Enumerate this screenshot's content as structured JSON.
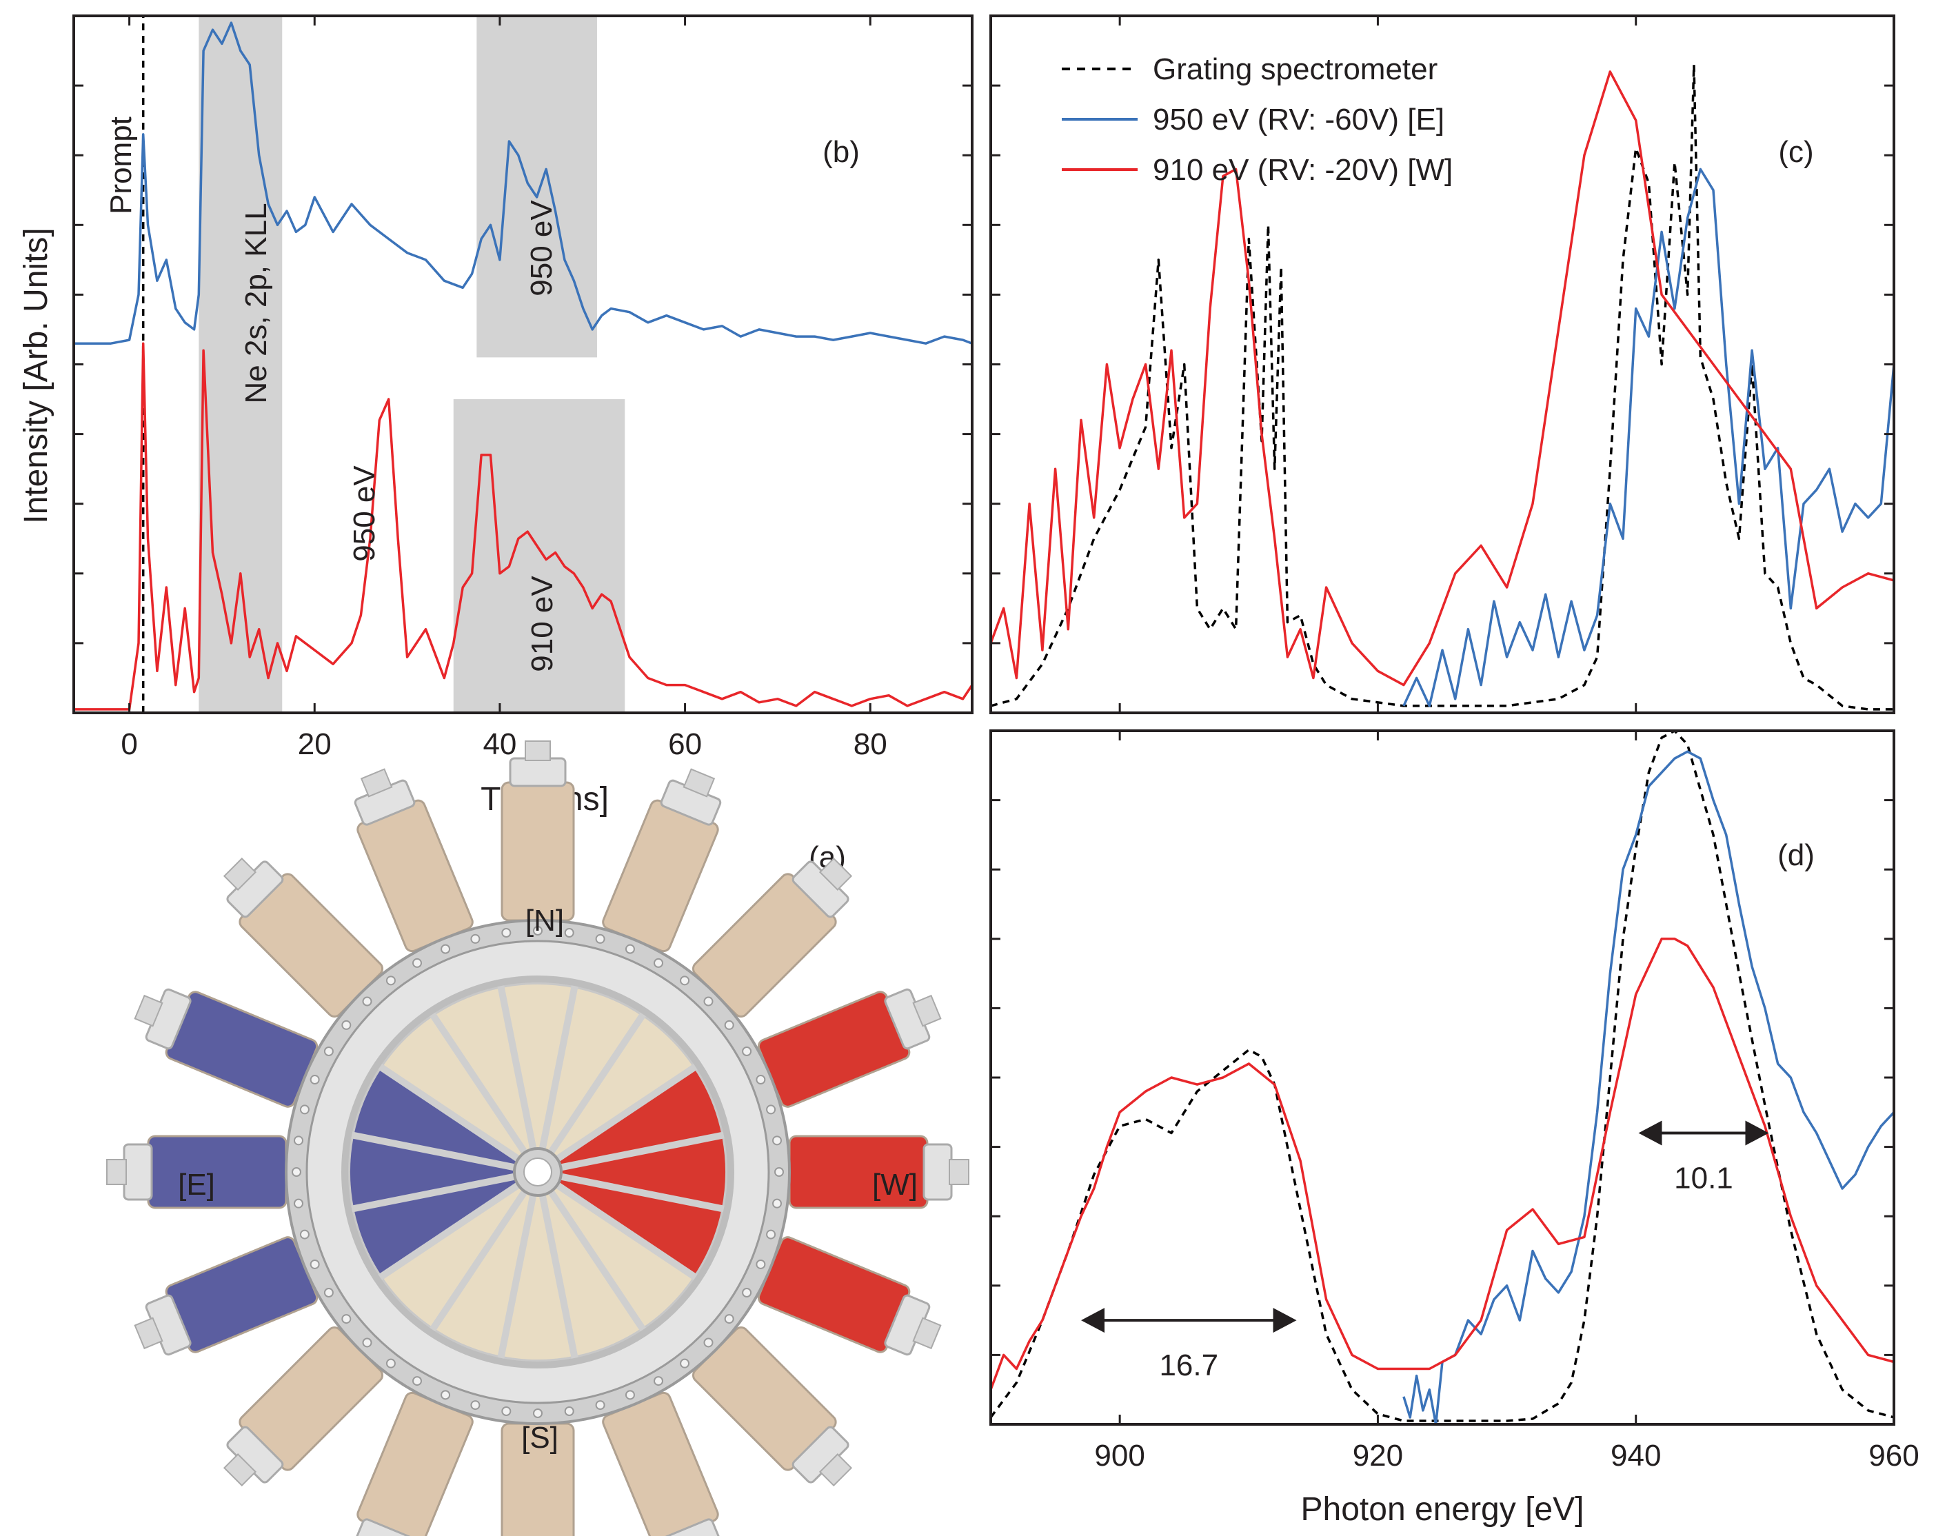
{
  "figure": {
    "ylabel_left": "Intensity [Arb. Units]"
  },
  "chart_data": [
    {
      "id": "b",
      "type": "line",
      "panel_label": "(b)",
      "xlabel": "TOF [ns]",
      "ylabel": "Intensity [Arb. Units]",
      "xlim": [
        -6,
        91
      ],
      "ylim": [
        0,
        10
      ],
      "xticks": [
        0,
        20,
        40,
        60,
        80
      ],
      "tick_labels": [
        "0",
        "20",
        "40",
        "60",
        "80"
      ],
      "shaded_regions": [
        {
          "x0": 7.5,
          "x1": 16.5,
          "y0": 0,
          "y1": 10
        },
        {
          "x0": 37.5,
          "x1": 50.5,
          "y0": 5.1,
          "y1": 10
        },
        {
          "x0": 35,
          "x1": 53.5,
          "y0": 0,
          "y1": 4.5
        }
      ],
      "series": [
        {
          "name": "Prompt",
          "color": "#000000",
          "dash": true,
          "x": [
            1.5,
            1.5
          ],
          "y": [
            0,
            10
          ]
        },
        {
          "name": "950 eV",
          "color": "#3b73b9",
          "x": [
            -6,
            -4,
            -2,
            0,
            1,
            1.5,
            2,
            3,
            4,
            5,
            6,
            7,
            7.5,
            8,
            9,
            10,
            11,
            12,
            13,
            14,
            15,
            16,
            17,
            18,
            19,
            20,
            22,
            24,
            26,
            28,
            30,
            32,
            34,
            36,
            37,
            38,
            39,
            40,
            41,
            42,
            43,
            44,
            45,
            46,
            47,
            48,
            49,
            50,
            51,
            52,
            54,
            56,
            58,
            60,
            62,
            64,
            66,
            68,
            70,
            72,
            74,
            76,
            78,
            80,
            82,
            84,
            86,
            88,
            90,
            91
          ],
          "y": [
            5.3,
            5.3,
            5.3,
            5.35,
            6.0,
            8.3,
            7.0,
            6.2,
            6.5,
            5.8,
            5.6,
            5.5,
            6.0,
            9.5,
            9.8,
            9.6,
            9.9,
            9.5,
            9.3,
            8.0,
            7.3,
            7.0,
            7.2,
            6.9,
            7.0,
            7.4,
            6.9,
            7.3,
            7.0,
            6.8,
            6.6,
            6.5,
            6.2,
            6.1,
            6.3,
            6.8,
            7.0,
            6.5,
            8.2,
            8.0,
            7.6,
            7.4,
            7.8,
            7.2,
            6.5,
            6.2,
            5.8,
            5.5,
            5.7,
            5.8,
            5.75,
            5.6,
            5.7,
            5.6,
            5.5,
            5.55,
            5.4,
            5.5,
            5.45,
            5.4,
            5.4,
            5.35,
            5.4,
            5.45,
            5.4,
            5.35,
            5.3,
            5.4,
            5.35,
            5.3
          ]
        },
        {
          "name": "910 eV",
          "color": "#e8262a",
          "x": [
            -6,
            -4,
            -2,
            0,
            1,
            1.5,
            2,
            3,
            4,
            5,
            6,
            7,
            7.5,
            8,
            9,
            10,
            11,
            12,
            13,
            14,
            15,
            16,
            17,
            18,
            20,
            22,
            24,
            25,
            26,
            27,
            28,
            29,
            30,
            32,
            34,
            35,
            36,
            37,
            38,
            39,
            40,
            41,
            42,
            43,
            44,
            45,
            46,
            47,
            48,
            49,
            50,
            51,
            52,
            53,
            54,
            56,
            58,
            60,
            62,
            64,
            66,
            68,
            70,
            72,
            74,
            76,
            78,
            80,
            82,
            84,
            86,
            88,
            90,
            91
          ],
          "y": [
            0.05,
            0.05,
            0.05,
            0.05,
            1.0,
            5.3,
            2.5,
            0.6,
            1.8,
            0.4,
            1.5,
            0.3,
            0.5,
            5.2,
            2.3,
            1.7,
            1.0,
            2.0,
            0.8,
            1.2,
            0.5,
            1.0,
            0.6,
            1.1,
            0.9,
            0.7,
            1.0,
            1.4,
            2.5,
            4.2,
            4.5,
            2.5,
            0.8,
            1.2,
            0.5,
            1.0,
            1.8,
            2.0,
            3.7,
            3.7,
            2.0,
            2.1,
            2.5,
            2.6,
            2.4,
            2.2,
            2.3,
            2.1,
            2.0,
            1.8,
            1.5,
            1.7,
            1.6,
            1.2,
            0.8,
            0.5,
            0.4,
            0.4,
            0.3,
            0.2,
            0.3,
            0.15,
            0.2,
            0.1,
            0.3,
            0.2,
            0.1,
            0.2,
            0.25,
            0.1,
            0.2,
            0.3,
            0.2,
            0.4
          ]
        }
      ],
      "annotations": [
        "Prompt",
        "Ne 2s, 2p, KLL",
        "950 eV",
        "950 eV",
        "910 eV"
      ]
    },
    {
      "id": "c",
      "type": "line",
      "panel_label": "(c)",
      "xlim": [
        890,
        960
      ],
      "ylim": [
        0,
        10
      ],
      "xticks": [
        900,
        920,
        940,
        960
      ],
      "legend": {
        "placement": "top-left",
        "entries": [
          {
            "label": "Grating spectrometer",
            "color": "#000000",
            "dash": true
          },
          {
            "label": "950 eV (RV: -60V) [E]",
            "color": "#3b73b9",
            "dash": false
          },
          {
            "label": "910 eV (RV: -20V) [W]",
            "color": "#e8262a",
            "dash": false
          }
        ]
      },
      "series": [
        {
          "name": "Grating spectrometer",
          "color": "#000000",
          "dash": true,
          "x": [
            890,
            892,
            894,
            896,
            898,
            900,
            902,
            903,
            904,
            905,
            906,
            907,
            908,
            909,
            910,
            911,
            911.5,
            912,
            912.5,
            913,
            914,
            915,
            916,
            918,
            920,
            922,
            924,
            926,
            928,
            930,
            932,
            934,
            936,
            937,
            938,
            939,
            940,
            941,
            942,
            943,
            944,
            944.5,
            945,
            946,
            947,
            948,
            949,
            950,
            951,
            952,
            953,
            954,
            956,
            958,
            960
          ],
          "y": [
            0.1,
            0.2,
            0.7,
            1.5,
            2.5,
            3.2,
            4.1,
            6.5,
            3.8,
            5.0,
            1.5,
            1.2,
            1.5,
            1.2,
            6.8,
            3.9,
            7.0,
            3.5,
            6.4,
            1.3,
            1.4,
            0.7,
            0.4,
            0.2,
            0.15,
            0.1,
            0.1,
            0.1,
            0.1,
            0.1,
            0.15,
            0.2,
            0.4,
            0.8,
            3.5,
            6.5,
            8.1,
            7.6,
            5.0,
            7.9,
            6.0,
            9.3,
            5.1,
            4.5,
            3.3,
            2.5,
            5.0,
            2.0,
            1.8,
            1.0,
            0.5,
            0.4,
            0.1,
            0.05,
            0.05
          ]
        },
        {
          "name": "950 eV (RV: -60V) [E]",
          "color": "#3b73b9",
          "x": [
            922,
            923,
            924,
            925,
            926,
            927,
            928,
            929,
            930,
            931,
            932,
            933,
            934,
            935,
            936,
            937,
            938,
            939,
            940,
            941,
            942,
            943,
            944,
            945,
            946,
            947,
            948,
            949,
            950,
            951,
            952,
            953,
            954,
            955,
            956,
            957,
            958,
            959,
            960
          ],
          "y": [
            0.1,
            0.5,
            0.1,
            0.9,
            0.2,
            1.2,
            0.4,
            1.6,
            0.8,
            1.3,
            0.9,
            1.7,
            0.8,
            1.6,
            0.9,
            1.4,
            3.0,
            2.5,
            5.8,
            5.4,
            6.9,
            5.8,
            7.1,
            7.8,
            7.5,
            5.0,
            3.0,
            5.2,
            3.5,
            3.8,
            1.5,
            3.0,
            3.2,
            3.5,
            2.6,
            3.0,
            2.8,
            3.0,
            5.0
          ]
        },
        {
          "name": "910 eV (RV: -20V) [W]",
          "color": "#e8262a",
          "x": [
            890,
            891,
            892,
            893,
            894,
            895,
            896,
            897,
            898,
            899,
            900,
            901,
            902,
            903,
            904,
            905,
            906,
            907,
            908,
            909,
            910,
            911,
            912,
            913,
            914,
            915,
            916,
            918,
            920,
            922,
            924,
            926,
            928,
            930,
            932,
            934,
            936,
            938,
            940,
            942,
            944,
            946,
            948,
            950,
            952,
            954,
            956,
            958,
            960
          ],
          "y": [
            1.0,
            1.5,
            0.5,
            3.0,
            0.9,
            3.5,
            1.2,
            4.2,
            2.8,
            5.0,
            3.8,
            4.5,
            5.0,
            3.5,
            5.2,
            2.8,
            3.0,
            5.8,
            7.7,
            7.8,
            6.2,
            4.0,
            2.5,
            0.8,
            1.2,
            0.5,
            1.8,
            1.0,
            0.6,
            0.4,
            1.0,
            2.0,
            2.4,
            1.8,
            3.0,
            5.5,
            8.0,
            9.2,
            8.5,
            6.0,
            5.5,
            5.0,
            4.5,
            4.0,
            3.5,
            1.5,
            1.8,
            2.0,
            1.9
          ]
        }
      ]
    },
    {
      "id": "d",
      "type": "line",
      "panel_label": "(d)",
      "xlabel": "Photon energy [eV]",
      "xlim": [
        890,
        960
      ],
      "ylim": [
        0,
        10
      ],
      "xticks": [
        900,
        920,
        940,
        960
      ],
      "tick_labels": [
        "900",
        "920",
        "940",
        "960"
      ],
      "series": [
        {
          "name": "Grating spectrometer",
          "color": "#000000",
          "dash": true,
          "x": [
            890,
            892,
            894,
            896,
            898,
            900,
            902,
            904,
            906,
            908,
            910,
            911,
            912,
            914,
            916,
            918,
            920,
            922,
            924,
            926,
            928,
            930,
            932,
            934,
            935,
            936,
            937,
            938,
            939,
            940,
            941,
            942,
            943,
            944,
            946,
            948,
            950,
            952,
            954,
            956,
            958,
            960
          ],
          "y": [
            0.1,
            0.6,
            1.5,
            2.5,
            3.6,
            4.3,
            4.4,
            4.2,
            4.8,
            5.1,
            5.4,
            5.3,
            4.9,
            3.1,
            1.3,
            0.5,
            0.15,
            0.05,
            0.05,
            0.05,
            0.05,
            0.05,
            0.08,
            0.3,
            0.6,
            1.5,
            3.0,
            5.0,
            7.0,
            8.3,
            9.4,
            9.9,
            10.0,
            9.8,
            8.5,
            6.5,
            4.6,
            2.8,
            1.3,
            0.5,
            0.2,
            0.1
          ]
        },
        {
          "name": "950 eV (RV: -60V) [E]",
          "color": "#3b73b9",
          "x": [
            922,
            922.5,
            923,
            923.5,
            924,
            924.5,
            925,
            926,
            927,
            928,
            929,
            930,
            931,
            932,
            933,
            934,
            935,
            936,
            937,
            938,
            939,
            940,
            941,
            942,
            943,
            944,
            945,
            946,
            947,
            948,
            949,
            950,
            951,
            952,
            953,
            954,
            955,
            956,
            957,
            958,
            959,
            960
          ],
          "y": [
            0.4,
            0.1,
            0.7,
            0.2,
            0.5,
            0.0,
            0.9,
            1.0,
            1.5,
            1.3,
            1.8,
            2.0,
            1.5,
            2.5,
            2.1,
            1.9,
            2.2,
            3.0,
            4.5,
            6.5,
            8.0,
            8.5,
            9.2,
            9.4,
            9.6,
            9.7,
            9.6,
            9.0,
            8.5,
            7.5,
            6.6,
            6.0,
            5.2,
            5.0,
            4.5,
            4.2,
            3.8,
            3.4,
            3.6,
            4.0,
            4.3,
            4.5
          ]
        },
        {
          "name": "910 eV (RV: -20V) [W]",
          "color": "#e8262a",
          "x": [
            890,
            891,
            892,
            893,
            894,
            895,
            896,
            897,
            898,
            899,
            900,
            902,
            904,
            906,
            908,
            910,
            912,
            914,
            916,
            918,
            920,
            922,
            924,
            926,
            928,
            930,
            932,
            934,
            936,
            938,
            940,
            942,
            943,
            944,
            946,
            948,
            950,
            952,
            954,
            956,
            958,
            960
          ],
          "y": [
            0.5,
            1.0,
            0.8,
            1.2,
            1.5,
            2.0,
            2.5,
            3.0,
            3.4,
            4.0,
            4.5,
            4.8,
            5.0,
            4.9,
            5.0,
            5.2,
            4.9,
            3.8,
            1.8,
            1.0,
            0.8,
            0.8,
            0.8,
            1.0,
            1.5,
            2.8,
            3.1,
            2.6,
            2.7,
            4.5,
            6.2,
            7.0,
            7.0,
            6.9,
            6.3,
            5.3,
            4.3,
            3.0,
            2.0,
            1.5,
            1.0,
            0.9
          ]
        }
      ],
      "annotations": [
        {
          "text": "16.7",
          "x0": 897,
          "x1": 913.7,
          "y": 1.5
        },
        {
          "text": "10.1",
          "x0": 940.2,
          "x1": 950.3,
          "y": 4.2
        }
      ]
    }
  ],
  "schematic": {
    "panel_label": "(a)",
    "labels": {
      "north": "[N]",
      "south": "[S]",
      "east": "[E]",
      "west": "[W]"
    },
    "colors": {
      "ring": "#cfcfcf",
      "ring_stroke": "#9a9a9a",
      "tube_neutral": "#dcc6ad",
      "sector_neutral": "#e8dcc3",
      "east": "#5b5ea0",
      "west": "#d8372f"
    }
  }
}
